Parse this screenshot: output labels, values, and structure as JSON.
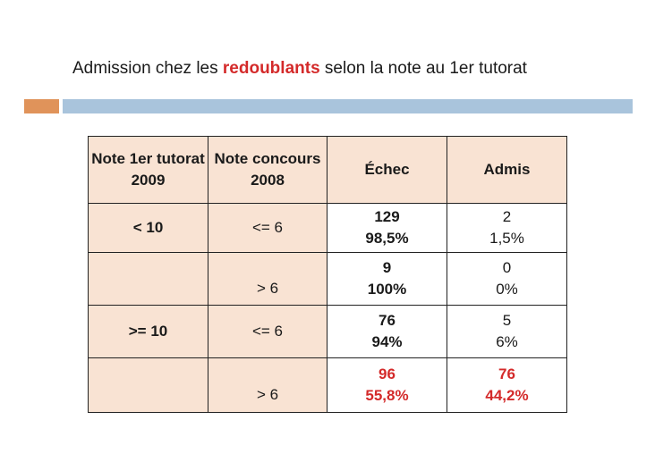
{
  "title": {
    "before": "Admission chez les ",
    "highlight": "redoublants",
    "after": " selon la note au 1er tutorat"
  },
  "colors": {
    "accent_red": "#d42a2a",
    "header_fill": "#f9e3d3",
    "bar_orange": "#e0935a",
    "bar_blue": "#a9c4dc"
  },
  "table": {
    "headers": {
      "col1": [
        "Note 1er",
        "tutorat 2009"
      ],
      "col2": [
        "Note",
        "concours",
        "2008"
      ],
      "col3": "Échec",
      "col4": "Admis"
    },
    "rows": [
      {
        "tutorat": "< 10",
        "concours": "<= 6",
        "echec": [
          "129",
          "98,5%"
        ],
        "admis": [
          "2",
          "1,5%"
        ]
      },
      {
        "tutorat": "",
        "concours": "> 6",
        "echec": [
          "9",
          "100%"
        ],
        "admis": [
          "0",
          "0%"
        ]
      },
      {
        "tutorat": ">= 10",
        "concours": "<= 6",
        "echec": [
          "76",
          "94%"
        ],
        "admis": [
          "5",
          "6%"
        ]
      },
      {
        "tutorat": "",
        "concours": "> 6",
        "echec": [
          "96",
          "55,8%"
        ],
        "admis": [
          "76",
          "44,2%"
        ]
      }
    ]
  }
}
